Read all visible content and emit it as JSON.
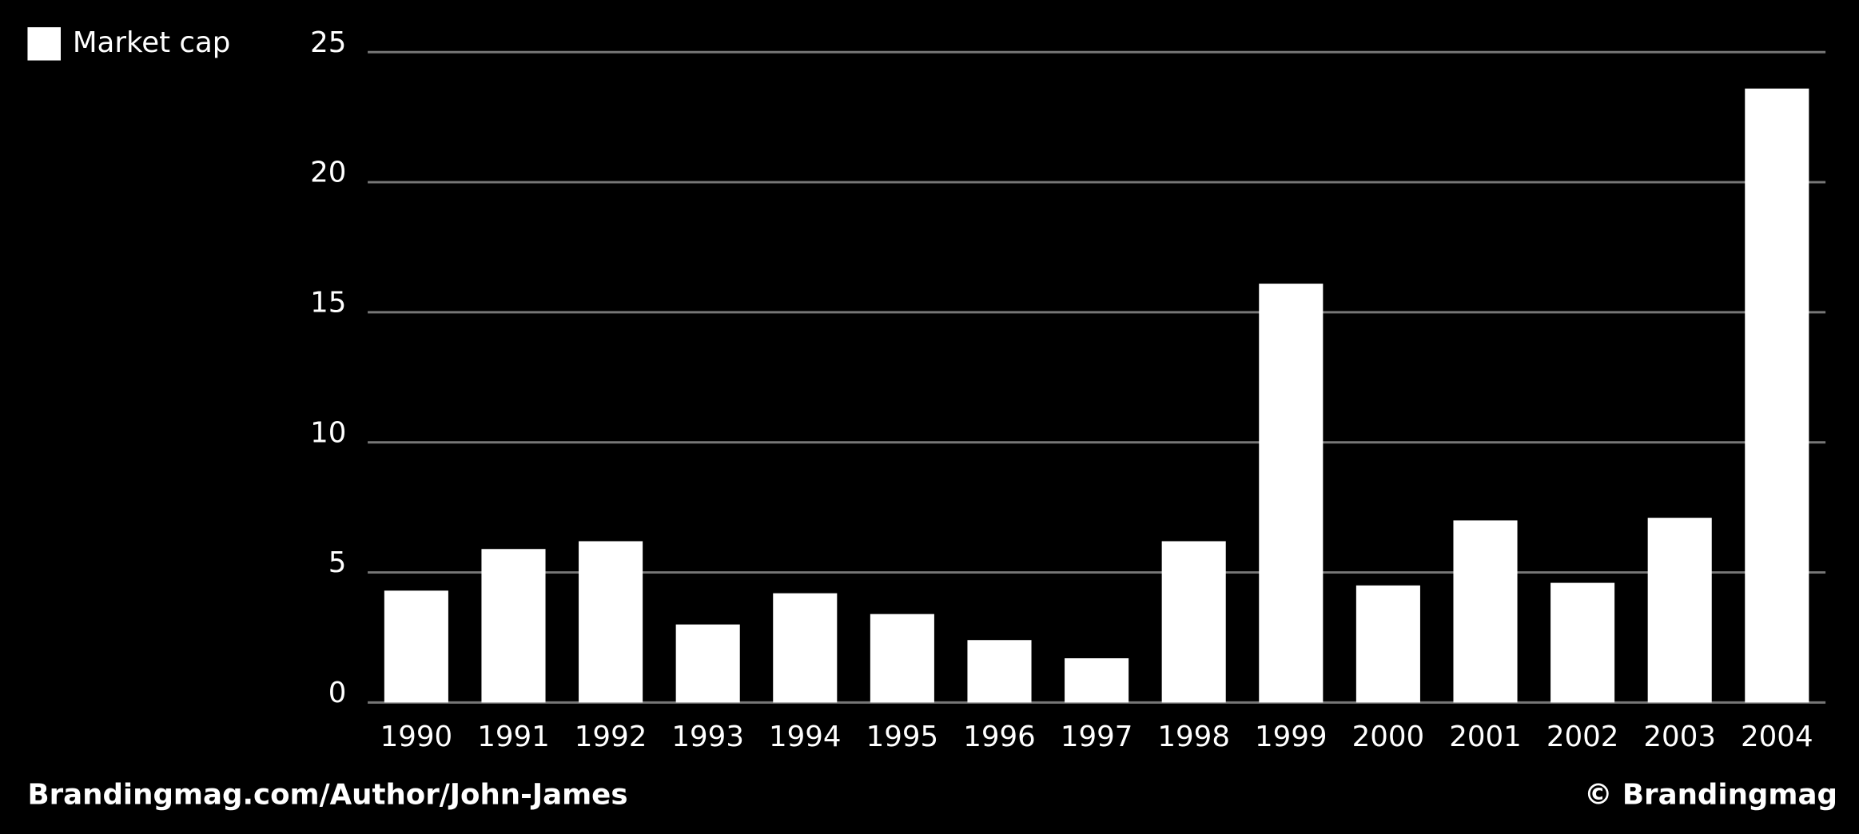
{
  "chart_data": {
    "type": "bar",
    "categories": [
      "1990",
      "1991",
      "1992",
      "1993",
      "1994",
      "1995",
      "1996",
      "1997",
      "1998",
      "1999",
      "2000",
      "2001",
      "2002",
      "2003",
      "2004"
    ],
    "series": [
      {
        "name": "Market cap",
        "color": "#ffffff",
        "values": [
          4.3,
          5.9,
          6.2,
          3.0,
          4.2,
          3.4,
          2.4,
          1.7,
          6.2,
          16.1,
          4.5,
          7.0,
          4.6,
          7.1,
          23.6
        ]
      }
    ],
    "ylim": [
      0,
      25
    ],
    "yticks": [
      0,
      5,
      10,
      15,
      20,
      25
    ],
    "grid": true,
    "legend": "top-left",
    "source": "Brandingmag.com/Author/John-James",
    "credit": "© Brandingmag"
  }
}
